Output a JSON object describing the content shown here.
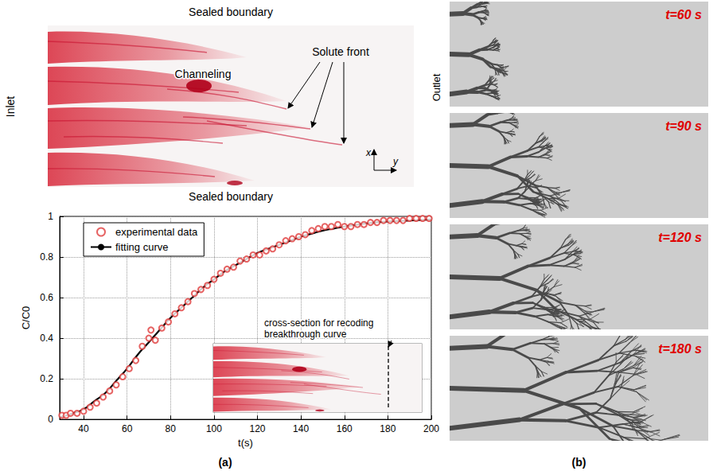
{
  "panel_a": {
    "caption": "(a)",
    "photo": {
      "top_label": "Sealed boundary",
      "bottom_label": "Sealed boundary",
      "left_label": "Inlet",
      "channel_label": "Channeling",
      "front_label": "Solute front",
      "axis_labels": [
        "x",
        "y"
      ]
    }
  },
  "chart_data": {
    "type": "line",
    "x_label": "t(s)",
    "y_label": "C/C0",
    "xlim": [
      29,
      200
    ],
    "xticks": [
      40,
      60,
      80,
      100,
      120,
      140,
      160,
      180,
      200
    ],
    "ylim": [
      0,
      1
    ],
    "yticks": [
      0,
      0.2,
      0.4,
      0.6,
      0.8,
      1
    ],
    "grid": true,
    "legend": "upper left",
    "annotations": [
      "cross-section for recoding breakthrough curve"
    ],
    "series": [
      {
        "name": "experimental data",
        "type": "scatter",
        "marker": "open_circle",
        "color": "#e03c3c",
        "x": [
          30,
          32,
          34,
          37,
          40,
          43,
          46,
          49,
          52,
          55,
          58,
          61,
          64,
          67,
          70,
          71,
          73,
          76,
          79,
          82,
          85,
          88,
          91,
          94,
          97,
          100,
          103,
          106,
          109,
          112,
          115,
          118,
          121,
          124,
          127,
          130,
          133,
          136,
          139,
          142,
          145,
          148,
          151,
          154,
          157,
          160,
          163,
          166,
          169,
          172,
          175,
          178,
          181,
          184,
          187,
          190,
          193,
          196,
          199
        ],
        "values": [
          0.02,
          0.02,
          0.03,
          0.03,
          0.04,
          0.06,
          0.08,
          0.11,
          0.14,
          0.17,
          0.21,
          0.25,
          0.29,
          0.36,
          0.4,
          0.44,
          0.39,
          0.45,
          0.48,
          0.52,
          0.55,
          0.58,
          0.62,
          0.64,
          0.66,
          0.69,
          0.72,
          0.74,
          0.75,
          0.78,
          0.79,
          0.81,
          0.81,
          0.83,
          0.84,
          0.86,
          0.88,
          0.89,
          0.9,
          0.91,
          0.93,
          0.94,
          0.95,
          0.95,
          0.96,
          0.95,
          0.95,
          0.96,
          0.96,
          0.97,
          0.97,
          0.98,
          0.98,
          0.98,
          0.98,
          0.99,
          0.99,
          0.99,
          0.99
        ]
      },
      {
        "name": "fitting curve",
        "type": "line",
        "line_style": "solid",
        "color": "#000000",
        "x": [
          29,
          35,
          40,
          45,
          50,
          55,
          60,
          65,
          70,
          75,
          80,
          85,
          90,
          95,
          100,
          105,
          110,
          115,
          120,
          125,
          130,
          135,
          140,
          145,
          150,
          155,
          160,
          170,
          180,
          190,
          200
        ],
        "values": [
          0.01,
          0.03,
          0.05,
          0.09,
          0.13,
          0.19,
          0.25,
          0.32,
          0.38,
          0.44,
          0.5,
          0.55,
          0.6,
          0.65,
          0.69,
          0.73,
          0.76,
          0.79,
          0.82,
          0.84,
          0.86,
          0.88,
          0.9,
          0.915,
          0.93,
          0.94,
          0.95,
          0.965,
          0.975,
          0.98,
          0.985
        ]
      }
    ]
  },
  "panel_b": {
    "caption": "(b)",
    "side_label": "Outlet",
    "frames": [
      "t=60 s",
      "t=90 s",
      "t=120 s",
      "t=180 s"
    ]
  }
}
